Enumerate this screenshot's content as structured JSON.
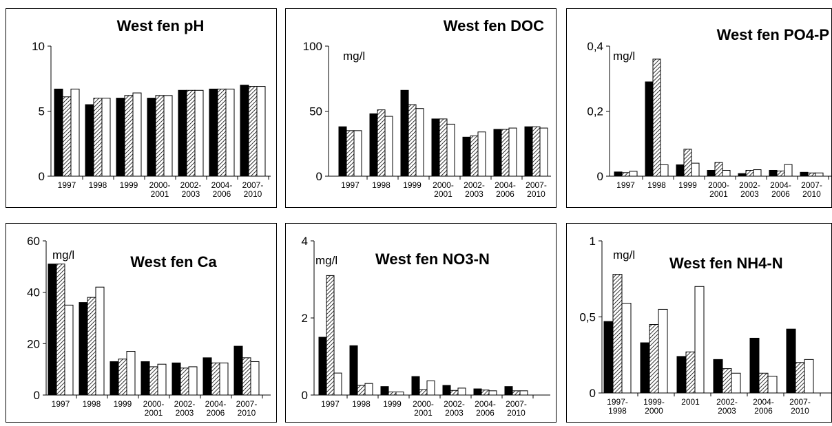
{
  "colors": {
    "series_a": "#000000",
    "series_b": "hatched",
    "series_c": "#ffffff"
  },
  "chart_data": [
    {
      "type": "bar",
      "title": "West fen pH",
      "unit": "",
      "categories": [
        [
          "1997"
        ],
        [
          "1998"
        ],
        [
          "1999"
        ],
        [
          "2000-",
          "2001"
        ],
        [
          "2002-",
          "2003"
        ],
        [
          "2004-",
          "2006"
        ],
        [
          "2007-",
          "2010"
        ]
      ],
      "ylim": [
        0,
        10
      ],
      "yticks": [
        {
          "v": 0,
          "label": "0"
        },
        {
          "v": 5,
          "label": "5"
        },
        {
          "v": 10,
          "label": "10"
        }
      ],
      "series": [
        {
          "fill": "black",
          "values": [
            6.7,
            5.5,
            6.0,
            6.0,
            6.6,
            6.7,
            7.0
          ]
        },
        {
          "fill": "hatch",
          "values": [
            6.1,
            6.0,
            6.2,
            6.2,
            6.6,
            6.7,
            6.9
          ]
        },
        {
          "fill": "white",
          "values": [
            6.7,
            6.0,
            6.4,
            6.2,
            6.6,
            6.7,
            6.9
          ]
        }
      ]
    },
    {
      "type": "bar",
      "title": "West fen DOC",
      "unit": "mg/l",
      "categories": [
        [
          "1997"
        ],
        [
          "1998"
        ],
        [
          "1999"
        ],
        [
          "2000-",
          "2001"
        ],
        [
          "2002-",
          "2003"
        ],
        [
          "2004-",
          "2006"
        ],
        [
          "2007-",
          "2010"
        ]
      ],
      "ylim": [
        0,
        100
      ],
      "yticks": [
        {
          "v": 0,
          "label": "0"
        },
        {
          "v": 50,
          "label": "50"
        },
        {
          "v": 100,
          "label": "100"
        }
      ],
      "series": [
        {
          "fill": "black",
          "values": [
            38,
            48,
            66,
            44,
            30,
            36,
            38
          ]
        },
        {
          "fill": "hatch",
          "values": [
            35,
            51,
            55,
            44,
            31,
            36,
            38
          ]
        },
        {
          "fill": "white",
          "values": [
            35,
            46,
            52,
            40,
            34,
            37,
            37
          ]
        }
      ]
    },
    {
      "type": "bar",
      "title": "West fen PO4-P",
      "unit": "mg/l",
      "categories": [
        [
          "1997"
        ],
        [
          "1998"
        ],
        [
          "1999"
        ],
        [
          "2000-",
          "2001"
        ],
        [
          "2002-",
          "2003"
        ],
        [
          "2004-",
          "2006"
        ],
        [
          "2007-",
          "2010"
        ]
      ],
      "ylim": [
        0,
        0.4
      ],
      "yticks": [
        {
          "v": 0,
          "label": "0"
        },
        {
          "v": 0.2,
          "label": "0,2"
        },
        {
          "v": 0.4,
          "label": "0,4"
        }
      ],
      "series": [
        {
          "fill": "black",
          "values": [
            0.013,
            0.29,
            0.035,
            0.018,
            0.008,
            0.018,
            0.012
          ]
        },
        {
          "fill": "hatch",
          "values": [
            0.011,
            0.36,
            0.083,
            0.042,
            0.018,
            0.016,
            0.01
          ]
        },
        {
          "fill": "white",
          "values": [
            0.015,
            0.035,
            0.04,
            0.018,
            0.02,
            0.036,
            0.01
          ]
        }
      ]
    },
    {
      "type": "bar",
      "title": "West fen Ca",
      "unit": "mg/l",
      "categories": [
        [
          "1997"
        ],
        [
          "1998"
        ],
        [
          "1999"
        ],
        [
          "2000-",
          "2001"
        ],
        [
          "2002-",
          "2003"
        ],
        [
          "2004-",
          "2006"
        ],
        [
          "2007-",
          "2010"
        ]
      ],
      "ylim": [
        0,
        60
      ],
      "yticks": [
        {
          "v": 0,
          "label": "0"
        },
        {
          "v": 20,
          "label": "20"
        },
        {
          "v": 40,
          "label": "40"
        },
        {
          "v": 60,
          "label": "60"
        }
      ],
      "series": [
        {
          "fill": "black",
          "values": [
            51,
            36,
            13,
            13,
            12.5,
            14.5,
            19
          ]
        },
        {
          "fill": "hatch",
          "values": [
            51,
            38,
            14,
            11,
            10.5,
            12.5,
            14.5
          ]
        },
        {
          "fill": "white",
          "values": [
            35,
            42,
            17,
            12,
            11,
            12.5,
            13
          ]
        }
      ]
    },
    {
      "type": "bar",
      "title": "West fen NO3-N",
      "unit": "mg/l",
      "categories": [
        [
          "1997"
        ],
        [
          "1998"
        ],
        [
          "1999"
        ],
        [
          "2000-",
          "2001"
        ],
        [
          "2002-",
          "2003"
        ],
        [
          "2004-",
          "2006"
        ],
        [
          "2007-",
          "2010"
        ]
      ],
      "ylim": [
        0,
        4
      ],
      "yticks": [
        {
          "v": 0,
          "label": "0"
        },
        {
          "v": 2,
          "label": "2"
        },
        {
          "v": 4,
          "label": "4"
        }
      ],
      "series": [
        {
          "fill": "black",
          "values": [
            1.5,
            1.28,
            0.22,
            0.48,
            0.25,
            0.16,
            0.22
          ]
        },
        {
          "fill": "hatch",
          "values": [
            3.1,
            0.25,
            0.08,
            0.14,
            0.12,
            0.13,
            0.11
          ]
        },
        {
          "fill": "white",
          "values": [
            0.57,
            0.3,
            0.08,
            0.37,
            0.18,
            0.11,
            0.11
          ]
        }
      ]
    },
    {
      "type": "bar",
      "title": "West fen NH4-N",
      "unit": "mg/l",
      "categories": [
        [
          "1997-",
          "1998"
        ],
        [
          "1999-",
          "2000"
        ],
        [
          "2001"
        ],
        [
          "2002-",
          "2003"
        ],
        [
          "2004-",
          "2006"
        ],
        [
          "2007-",
          "2010"
        ]
      ],
      "ylim": [
        0,
        1
      ],
      "yticks": [
        {
          "v": 0,
          "label": "0"
        },
        {
          "v": 0.5,
          "label": "0,5"
        },
        {
          "v": 1,
          "label": "1"
        }
      ],
      "series": [
        {
          "fill": "black",
          "values": [
            0.47,
            0.33,
            0.24,
            0.22,
            0.36,
            0.42
          ]
        },
        {
          "fill": "hatch",
          "values": [
            0.78,
            0.45,
            0.27,
            0.16,
            0.13,
            0.2
          ]
        },
        {
          "fill": "white",
          "values": [
            0.59,
            0.55,
            0.7,
            0.13,
            0.11,
            0.22
          ]
        }
      ]
    }
  ]
}
